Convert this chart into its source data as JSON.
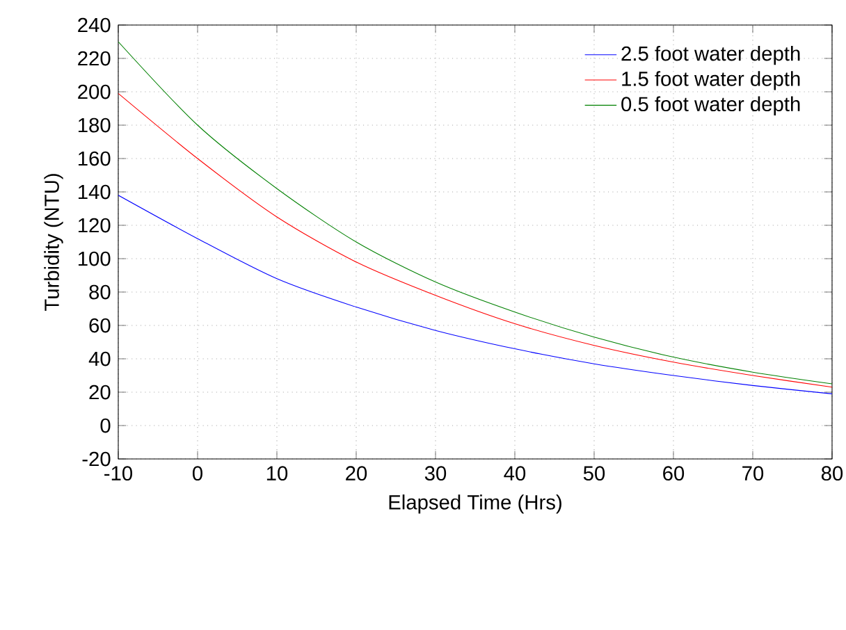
{
  "chart_data": {
    "type": "line",
    "xlabel": "Elapsed Time (Hrs)",
    "ylabel": "Turbidity (NTU)",
    "x": [
      -10,
      0,
      10,
      20,
      30,
      40,
      50,
      60,
      70,
      80
    ],
    "series": [
      {
        "name": "2.5 foot water depth",
        "color": "#0000ff",
        "values": [
          138,
          112,
          88,
          71,
          57,
          46,
          37,
          30,
          24,
          19
        ]
      },
      {
        "name": "1.5 foot water depth",
        "color": "#ff0000",
        "values": [
          199,
          160,
          125,
          98,
          78,
          61,
          48,
          38,
          30,
          23
        ]
      },
      {
        "name": "0.5 foot water depth",
        "color": "#008000",
        "values": [
          230,
          180,
          142,
          110,
          86,
          68,
          53,
          41,
          32,
          25
        ]
      }
    ],
    "xlim": [
      -10,
      80
    ],
    "xticks": [
      -10,
      0,
      10,
      20,
      30,
      40,
      50,
      60,
      70,
      80
    ],
    "ylim": [
      -20,
      240
    ],
    "yticks": [
      -20,
      0,
      20,
      40,
      60,
      80,
      100,
      120,
      140,
      160,
      180,
      200,
      220,
      240
    ],
    "grid": true,
    "legend": "top right",
    "marker": "none",
    "line_style": "solid"
  }
}
